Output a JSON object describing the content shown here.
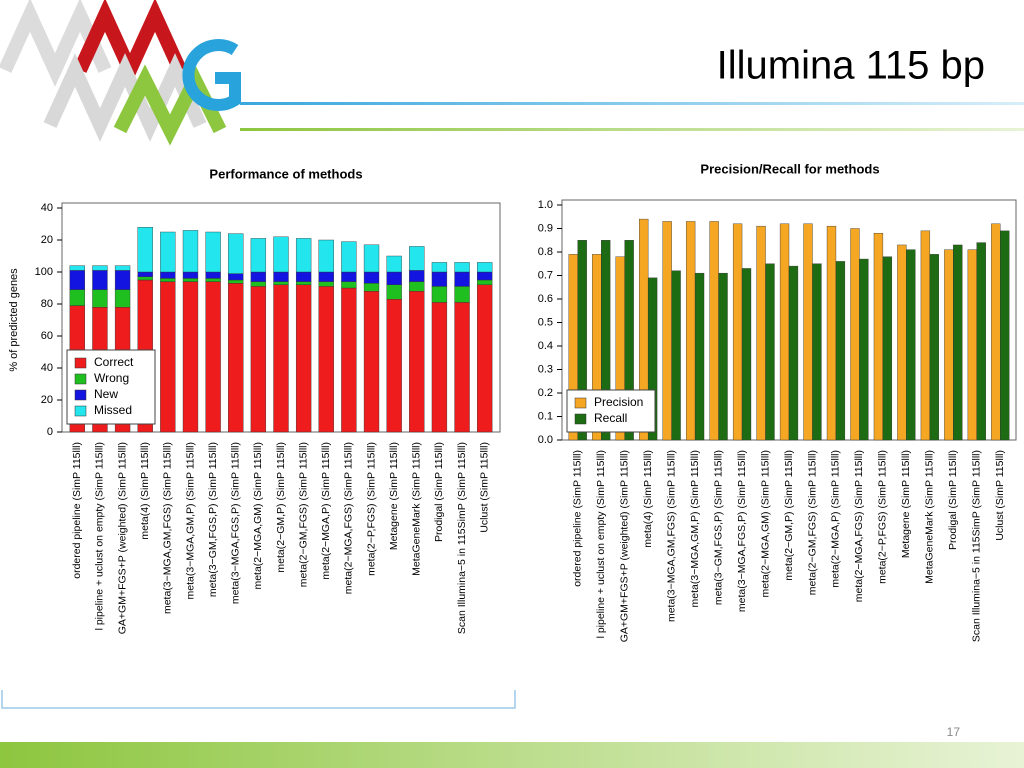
{
  "slide": {
    "title": "Illumina 115 bp",
    "page_number": "17"
  },
  "chart_data": [
    {
      "type": "stacked_bar",
      "title": "Performance of methods",
      "y_label": "% of predicted genes",
      "categories": [
        "ordered pipeline (SimP 115lll)",
        "l pipeline + uclust on empty (SimP 115lll)",
        "GA+GM+FGS+P (weighted) (SimP 115lll)",
        "meta(4) (SimP 115lll)",
        "meta(3−MGA,GM,FGS) (SimP 115lll)",
        "meta(3−MGA,GM,P) (SimP 115lll)",
        "meta(3−GM,FGS,P) (SimP 115lll)",
        "meta(3−MGA,FGS,P) (SimP 115lll)",
        "meta(2−MGA,GM) (SimP 115lll)",
        "meta(2−GM,P) (SimP 115lll)",
        "meta(2−GM,FGS) (SimP 115lll)",
        "meta(2−MGA,P) (SimP 115lll)",
        "meta(2−MGA,FGS) (SimP 115lll)",
        "meta(2−P,FGS) (SimP 115lll)",
        "Metagene (SimP 115lll)",
        "MetaGeneMark (SimP 115lll)",
        "Prodigal (SimP 115lll)",
        "Scan Illumina−5 in 115SimP (SimP 115lll)",
        "Uclust (SimP 115lll)"
      ],
      "series": [
        {
          "name": "Correct",
          "color": "#ee1c1c",
          "values": [
            79,
            78,
            78,
            95,
            94,
            94,
            94,
            93,
            91,
            92,
            92,
            91,
            90,
            88,
            83,
            88,
            81,
            81,
            92
          ]
        },
        {
          "name": "Wrong",
          "color": "#1fbf1f",
          "values": [
            10,
            11,
            11,
            2,
            2,
            2,
            2,
            2,
            3,
            2,
            2,
            3,
            4,
            5,
            9,
            6,
            10,
            10,
            3
          ]
        },
        {
          "name": "New",
          "color": "#1414e0",
          "values": [
            12,
            12,
            12,
            3,
            4,
            4,
            4,
            4,
            6,
            6,
            6,
            6,
            6,
            7,
            8,
            7,
            9,
            9,
            5
          ]
        },
        {
          "name": "Missed",
          "color": "#22e5ee",
          "values": [
            3,
            3,
            3,
            28,
            25,
            26,
            25,
            25,
            21,
            22,
            21,
            20,
            19,
            17,
            10,
            15,
            6,
            6,
            6
          ]
        }
      ],
      "ylim": [
        0,
        140
      ],
      "yticks": [
        0,
        20,
        40,
        60,
        80,
        100,
        {
          "value": 120,
          "label": "20"
        },
        {
          "value": 140,
          "label": "40"
        }
      ],
      "legend": "lower left"
    },
    {
      "type": "grouped_bar",
      "title": "Precision/Recall for methods",
      "categories": [
        "ordered pipeline (SimP 115lll)",
        "l pipeline + uclust on empty (SimP 115lll)",
        "GA+GM+FGS+P (weighted) (SimP 115lll)",
        "meta(4) (SimP 115lll)",
        "meta(3−MGA,GM,FGS) (SimP 115lll)",
        "meta(3−MGA,GM,P) (SimP 115lll)",
        "meta(3−GM,FGS,P) (SimP 115lll)",
        "meta(3−MGA,FGS,P) (SimP 115lll)",
        "meta(2−MGA,GM) (SimP 115lll)",
        "meta(2−GM,P) (SimP 115lll)",
        "meta(2−GM,FGS) (SimP 115lll)",
        "meta(2−MGA,P) (SimP 115lll)",
        "meta(2−MGA,FGS) (SimP 115lll)",
        "meta(2−P,FGS) (SimP 115lll)",
        "Metagene (SimP 115lll)",
        "MetaGeneMark (SimP 115lll)",
        "Prodigal (SimP 115lll)",
        "Scan Illumina−5 in 115SimP (SimP 115lll)",
        "Uclust (SimP 115lll)"
      ],
      "series": [
        {
          "name": "Precision",
          "color": "#f5a623",
          "values": [
            0.79,
            0.79,
            0.78,
            0.94,
            0.93,
            0.93,
            0.93,
            0.92,
            0.91,
            0.92,
            0.92,
            0.91,
            0.9,
            0.88,
            0.83,
            0.89,
            0.81,
            0.81,
            0.92
          ]
        },
        {
          "name": "Recall",
          "color": "#1d6b12",
          "values": [
            0.85,
            0.85,
            0.85,
            0.69,
            0.72,
            0.71,
            0.71,
            0.73,
            0.75,
            0.74,
            0.75,
            0.76,
            0.77,
            0.78,
            0.81,
            0.79,
            0.83,
            0.84,
            0.89
          ]
        }
      ],
      "ylim": [
        0,
        1.0
      ],
      "yticks": [
        {
          "value": 0,
          "label": "0.0"
        },
        0.1,
        0.2,
        0.3,
        0.4,
        0.5,
        0.6,
        0.7,
        0.8,
        0.9,
        {
          "value": 1,
          "label": "1.0"
        }
      ],
      "legend": "lower left"
    }
  ]
}
